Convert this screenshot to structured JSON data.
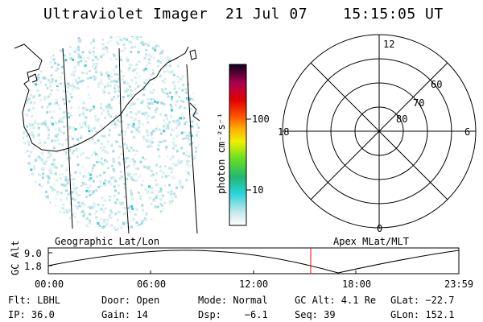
{
  "header": {
    "title": "Ultraviolet Imager",
    "date": "21 Jul 07",
    "time": "15:15:05 UT"
  },
  "colorbar": {
    "label": "photon cm⁻²s⁻¹",
    "ticks": [
      "100",
      "10"
    ]
  },
  "polar": {
    "mlt_labels": [
      "12",
      "18",
      "6",
      "0"
    ],
    "lat_labels": [
      "60",
      "70",
      "80"
    ]
  },
  "timeline": {
    "left_label": "Geographic Lat/Lon",
    "right_label": "Apex MLat/MLT",
    "axis_label": "GC Alt",
    "y_ticks": [
      "9.0",
      "1.8"
    ],
    "time_ticks": [
      "00:00",
      "06:00",
      "12:00",
      "18:00",
      "23:59"
    ],
    "marker_color": "#ff0000"
  },
  "info": {
    "row1": [
      "Flt: LBHL",
      "Door: Open",
      "Mode: Normal",
      "GC Alt: 4.1 Re",
      "GLat: −22.7"
    ],
    "row2": [
      "IP: 36.0",
      "Gain: 14",
      "Dsp:    −6.1",
      "Seq: 39",
      "GLon: 152.1"
    ]
  }
}
